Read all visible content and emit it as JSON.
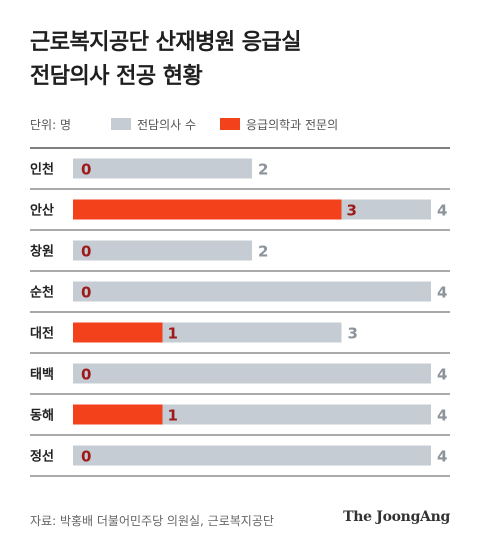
{
  "chart_data": {
    "type": "bar",
    "orientation": "horizontal",
    "title_lines": [
      "근로복지공단 산재병원 응급실",
      "전담의사 전공 현황"
    ],
    "unit_label": "단위: 명",
    "categories": [
      "인천",
      "안산",
      "창원",
      "순천",
      "대전",
      "태백",
      "동해",
      "정선"
    ],
    "series": [
      {
        "name": "전담의사 수",
        "values": [
          2,
          4,
          2,
          4,
          3,
          4,
          4,
          4
        ]
      },
      {
        "name": "응급의학과 전문의",
        "values": [
          0,
          3,
          0,
          0,
          1,
          0,
          1,
          0
        ]
      }
    ],
    "xlim": [
      0,
      4
    ],
    "colors": {
      "total": "#c5ccd3",
      "specialist": "#f2411b",
      "specialist_label": "#9e1a1a",
      "total_label": "#8c939b",
      "grid": "#555555"
    },
    "source": "자료: 박홍배 더불어민주당 의원실, 근로복지공단"
  },
  "brand": "The JoongAng"
}
